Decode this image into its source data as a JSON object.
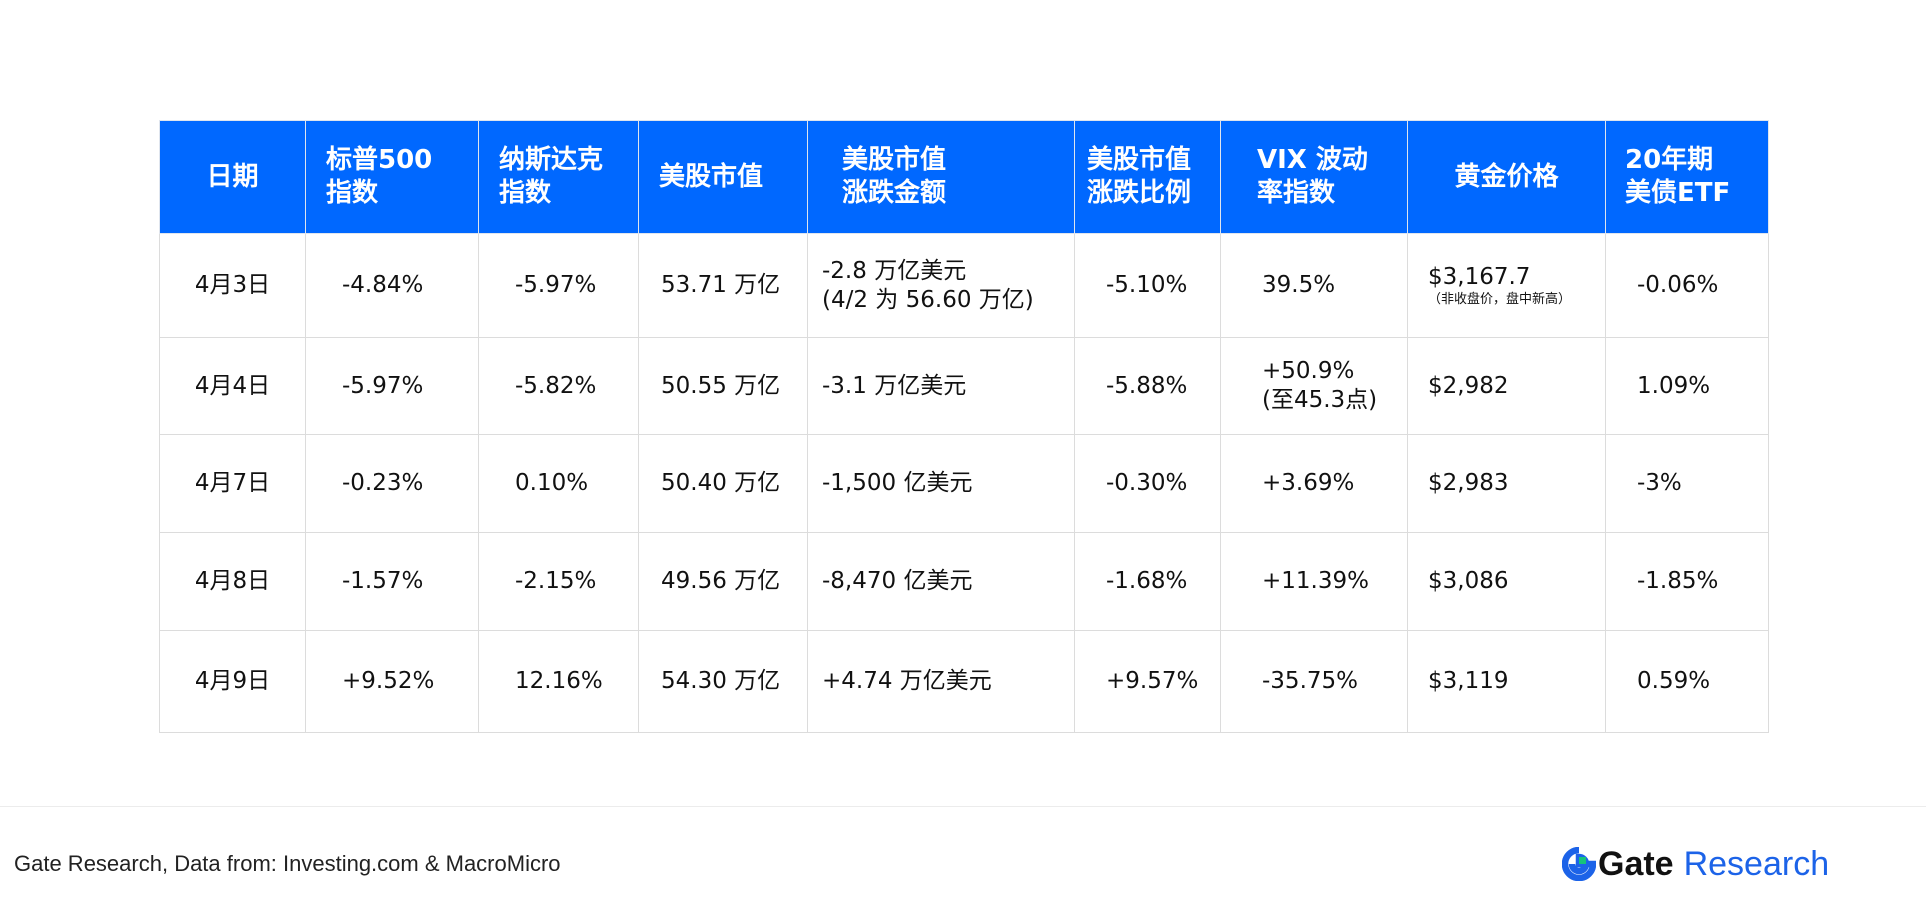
{
  "chart_data": {
    "type": "table",
    "columns": [
      "日期",
      "标普500\n指数",
      "纳斯达克\n指数",
      "美股市值",
      "美股市值\n涨跌金额",
      "美股市值\n涨跌比例",
      "VIX 波动\n率指数",
      "黄金价格",
      "20年期\n美债ETF"
    ],
    "rows": [
      {
        "date": "4月3日",
        "sp500": "-4.84%",
        "nasdaq": "-5.97%",
        "market_cap": "53.71 万亿",
        "cap_change_amount": "-2.8 万亿美元\n    (4/2 为 56.60 万亿)",
        "cap_change_pct": "-5.10%",
        "vix": "39.5%",
        "gold": "$3,167.7",
        "gold_note": "（非收盘价，盘中新高）",
        "treasury_etf": "-0.06%"
      },
      {
        "date": "4月4日",
        "sp500": "-5.97%",
        "nasdaq": "-5.82%",
        "market_cap": "50.55 万亿",
        "cap_change_amount": "-3.1 万亿美元",
        "cap_change_pct": "-5.88%",
        "vix": "+50.9%\n(至45.3点)",
        "gold": "$2,982",
        "gold_note": "",
        "treasury_etf": "1.09%"
      },
      {
        "date": "4月7日",
        "sp500": "-0.23%",
        "nasdaq": "0.10%",
        "market_cap": "50.40 万亿",
        "cap_change_amount": "-1,500 亿美元",
        "cap_change_pct": "-0.30%",
        "vix": "+3.69%",
        "gold": "$2,983",
        "gold_note": "",
        "treasury_etf": "-3%"
      },
      {
        "date": "4月8日",
        "sp500": "-1.57%",
        "nasdaq": "-2.15%",
        "market_cap": "49.56 万亿",
        "cap_change_amount": "-8,470 亿美元",
        "cap_change_pct": "-1.68%",
        "vix": "+11.39%",
        "gold": "$3,086",
        "gold_note": "",
        "treasury_etf": "-1.85%"
      },
      {
        "date": "4月9日",
        "sp500": "+9.52%",
        "nasdaq": "12.16%",
        "market_cap": "54.30 万亿",
        "cap_change_amount": "+4.74 万亿美元",
        "cap_change_pct": "+9.57%",
        "vix": "-35.75%",
        "gold": "$3,119",
        "gold_note": "",
        "treasury_etf": "0.59%"
      }
    ]
  },
  "footer": {
    "source": "Gate Research, Data from: Investing.com & MacroMicro",
    "brand_logo_icon": "gate-logo-icon",
    "brand_gate": "Gate",
    "brand_research": "Research",
    "brand_color": "#1c63e8"
  },
  "colors": {
    "header_bg": "#0068ff",
    "header_text": "#ffffff",
    "grid": "#dcdcdc"
  }
}
